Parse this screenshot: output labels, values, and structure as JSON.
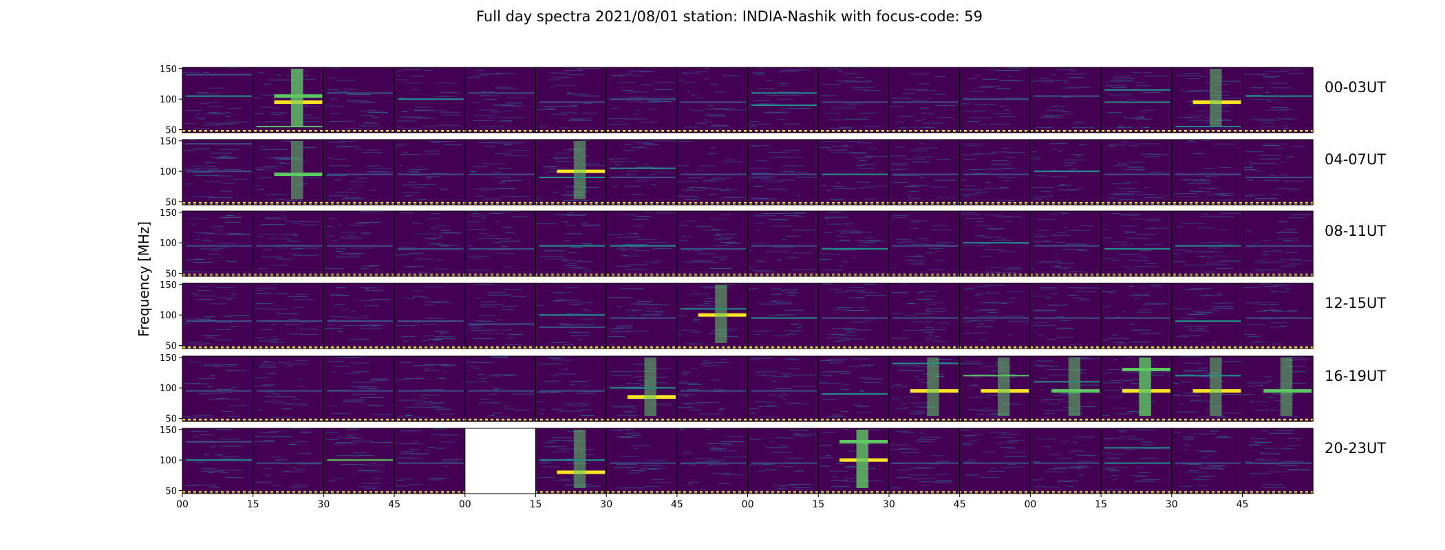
{
  "chart_data": {
    "type": "heatmap",
    "title": "Full day spectra 2021/08/01 station: INDIA-Nashik with focus-code: 59",
    "ylabel": "Frequency [MHz]",
    "ylim": [
      45,
      152
    ],
    "yticks": [
      50,
      100,
      150
    ],
    "xticks": [
      "00",
      "15",
      "30",
      "45",
      "00",
      "15",
      "30",
      "45",
      "00",
      "15",
      "30",
      "45",
      "00",
      "15",
      "30",
      "45"
    ],
    "colormap": [
      "#440154",
      "#3b528b",
      "#21918c",
      "#5ec962",
      "#fde725"
    ],
    "background_color": "#440154",
    "grid": false,
    "panels_per_row": 16,
    "rows": [
      {
        "label": "00-03UT",
        "missing": [],
        "activity": [
          [
            {
              "f": 105,
              "s": 0.6
            },
            {
              "f": 140,
              "s": 0.3
            }
          ],
          [
            {
              "f": 105,
              "s": 0.8
            },
            {
              "f": 95,
              "s": 1.0
            },
            {
              "f": 55,
              "s": 0.7
            }
          ],
          [
            {
              "f": 110,
              "s": 0.3
            }
          ],
          [
            {
              "f": 100,
              "s": 0.4
            }
          ],
          [
            {
              "f": 110,
              "s": 0.3
            }
          ],
          [
            {
              "f": 95,
              "s": 0.2
            }
          ],
          [
            {
              "f": 100,
              "s": 0.2
            }
          ],
          [
            {
              "f": 95,
              "s": 0.2
            }
          ],
          [
            {
              "f": 110,
              "s": 0.5
            },
            {
              "f": 90,
              "s": 0.4
            }
          ],
          [
            {
              "f": 95,
              "s": 0.2
            }
          ],
          [
            {
              "f": 95,
              "s": 0.2
            }
          ],
          [
            {
              "f": 100,
              "s": 0.3
            }
          ],
          [
            {
              "f": 105,
              "s": 0.3
            }
          ],
          [
            {
              "f": 95,
              "s": 0.6
            },
            {
              "f": 115,
              "s": 0.4
            }
          ],
          [
            {
              "f": 95,
              "s": 0.9
            },
            {
              "f": 55,
              "s": 0.4
            }
          ],
          [
            {
              "f": 105,
              "s": 0.4
            }
          ]
        ]
      },
      {
        "label": "04-07UT",
        "missing": [],
        "activity": [
          [
            {
              "f": 100,
              "s": 0.3
            },
            {
              "f": 145,
              "s": 0.3
            }
          ],
          [
            {
              "f": 95,
              "s": 0.8
            }
          ],
          [
            {
              "f": 95,
              "s": 0.2
            }
          ],
          [
            {
              "f": 95,
              "s": 0.3
            }
          ],
          [
            {
              "f": 95,
              "s": 0.2
            }
          ],
          [
            {
              "f": 100,
              "s": 0.9
            },
            {
              "f": 90,
              "s": 0.5
            }
          ],
          [
            {
              "f": 105,
              "s": 0.5
            },
            {
              "f": 90,
              "s": 0.3
            }
          ],
          [
            {
              "f": 95,
              "s": 0.2
            }
          ],
          [
            {
              "f": 95,
              "s": 0.2
            }
          ],
          [
            {
              "f": 95,
              "s": 0.5
            }
          ],
          [
            {
              "f": 95,
              "s": 0.2
            }
          ],
          [
            {
              "f": 95,
              "s": 0.2
            }
          ],
          [
            {
              "f": 100,
              "s": 0.4
            }
          ],
          [
            {
              "f": 95,
              "s": 0.3
            }
          ],
          [
            {
              "f": 95,
              "s": 0.3
            }
          ],
          [
            {
              "f": 90,
              "s": 0.3
            }
          ]
        ]
      },
      {
        "label": "08-11UT",
        "missing": [],
        "activity": [
          [
            {
              "f": 95,
              "s": 0.3
            }
          ],
          [
            {
              "f": 95,
              "s": 0.2
            }
          ],
          [
            {
              "f": 95,
              "s": 0.3
            }
          ],
          [
            {
              "f": 90,
              "s": 0.2
            }
          ],
          [
            {
              "f": 90,
              "s": 0.2
            }
          ],
          [
            {
              "f": 95,
              "s": 0.6
            }
          ],
          [
            {
              "f": 95,
              "s": 0.4
            }
          ],
          [
            {
              "f": 90,
              "s": 0.3
            }
          ],
          [
            {
              "f": 95,
              "s": 0.2
            }
          ],
          [
            {
              "f": 90,
              "s": 0.4
            }
          ],
          [
            {
              "f": 95,
              "s": 0.2
            }
          ],
          [
            {
              "f": 100,
              "s": 0.6
            }
          ],
          [
            {
              "f": 95,
              "s": 0.2
            }
          ],
          [
            {
              "f": 90,
              "s": 0.5
            }
          ],
          [
            {
              "f": 95,
              "s": 0.5
            }
          ],
          [
            {
              "f": 95,
              "s": 0.2
            }
          ]
        ]
      },
      {
        "label": "12-15UT",
        "missing": [],
        "activity": [
          [
            {
              "f": 90,
              "s": 0.3
            }
          ],
          [
            {
              "f": 90,
              "s": 0.2
            }
          ],
          [
            {
              "f": 90,
              "s": 0.3
            }
          ],
          [
            {
              "f": 90,
              "s": 0.2
            }
          ],
          [
            {
              "f": 85,
              "s": 0.3
            }
          ],
          [
            {
              "f": 100,
              "s": 0.5
            },
            {
              "f": 80,
              "s": 0.3
            }
          ],
          [
            {
              "f": 95,
              "s": 0.3
            }
          ],
          [
            {
              "f": 100,
              "s": 0.9
            },
            {
              "f": 110,
              "s": 0.4
            }
          ],
          [
            {
              "f": 95,
              "s": 0.4
            }
          ],
          [
            {
              "f": 95,
              "s": 0.2
            }
          ],
          [
            {
              "f": 95,
              "s": 0.2
            }
          ],
          [
            {
              "f": 95,
              "s": 0.2
            }
          ],
          [
            {
              "f": 95,
              "s": 0.2
            }
          ],
          [
            {
              "f": 95,
              "s": 0.3
            }
          ],
          [
            {
              "f": 90,
              "s": 0.5
            }
          ],
          [
            {
              "f": 95,
              "s": 0.2
            }
          ]
        ]
      },
      {
        "label": "16-19UT",
        "missing": [],
        "activity": [
          [
            {
              "f": 95,
              "s": 0.2
            }
          ],
          [
            {
              "f": 95,
              "s": 0.2
            }
          ],
          [
            {
              "f": 95,
              "s": 0.2
            }
          ],
          [
            {
              "f": 95,
              "s": 0.2
            }
          ],
          [
            {
              "f": 95,
              "s": 0.2
            }
          ],
          [
            {
              "f": 95,
              "s": 0.2
            }
          ],
          [
            {
              "f": 85,
              "s": 0.9
            },
            {
              "f": 100,
              "s": 0.5
            }
          ],
          [
            {
              "f": 95,
              "s": 0.2
            }
          ],
          [
            {
              "f": 95,
              "s": 0.2
            }
          ],
          [
            {
              "f": 90,
              "s": 0.4
            }
          ],
          [
            {
              "f": 95,
              "s": 0.9
            },
            {
              "f": 140,
              "s": 0.5
            }
          ],
          [
            {
              "f": 95,
              "s": 1.0
            },
            {
              "f": 120,
              "s": 0.7
            }
          ],
          [
            {
              "f": 95,
              "s": 0.8
            },
            {
              "f": 110,
              "s": 0.5
            }
          ],
          [
            {
              "f": 95,
              "s": 1.0
            },
            {
              "f": 130,
              "s": 0.8
            }
          ],
          [
            {
              "f": 95,
              "s": 0.9
            },
            {
              "f": 120,
              "s": 0.5
            }
          ],
          [
            {
              "f": 95,
              "s": 0.8
            }
          ]
        ]
      },
      {
        "label": "20-23UT",
        "missing": [
          4
        ],
        "activity": [
          [
            {
              "f": 100,
              "s": 0.6
            },
            {
              "f": 130,
              "s": 0.3
            }
          ],
          [
            {
              "f": 95,
              "s": 0.2
            }
          ],
          [
            {
              "f": 100,
              "s": 0.7
            }
          ],
          [
            {
              "f": 95,
              "s": 0.2
            }
          ],
          [],
          [
            {
              "f": 80,
              "s": 0.9
            },
            {
              "f": 100,
              "s": 0.5
            }
          ],
          [
            {
              "f": 95,
              "s": 0.3
            }
          ],
          [
            {
              "f": 95,
              "s": 0.2
            }
          ],
          [
            {
              "f": 95,
              "s": 0.3
            }
          ],
          [
            {
              "f": 100,
              "s": 1.0
            },
            {
              "f": 130,
              "s": 0.8
            }
          ],
          [
            {
              "f": 95,
              "s": 0.3
            }
          ],
          [
            {
              "f": 95,
              "s": 0.3
            }
          ],
          [
            {
              "f": 95,
              "s": 0.3
            }
          ],
          [
            {
              "f": 95,
              "s": 0.6
            },
            {
              "f": 120,
              "s": 0.5
            }
          ],
          [
            {
              "f": 95,
              "s": 0.3
            }
          ],
          [
            {
              "f": 95,
              "s": 0.2
            }
          ]
        ]
      }
    ]
  }
}
